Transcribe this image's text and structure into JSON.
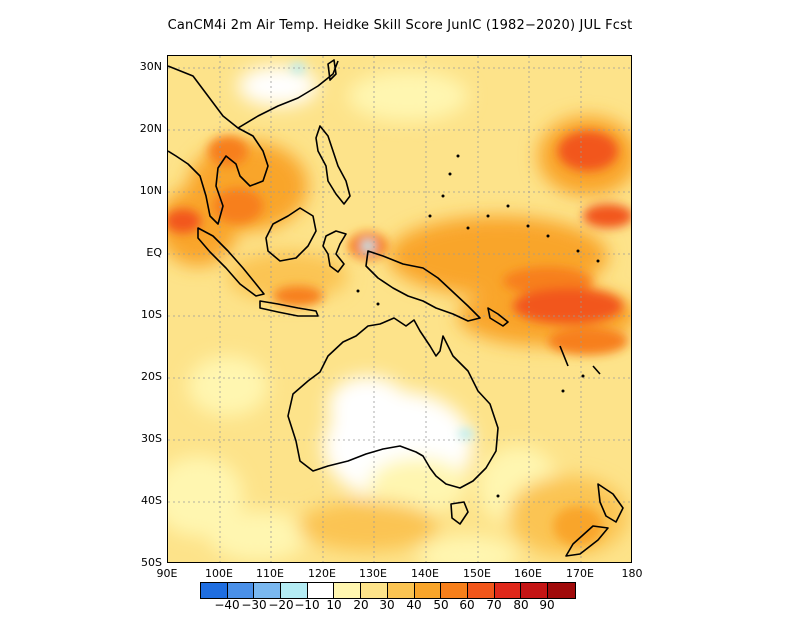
{
  "title": "CanCM4i  2m Air Temp. Heidke Skill Score JunIC (1982−2020) JUL Fcst",
  "map": {
    "lat_labels": [
      "30N",
      "20N",
      "10N",
      "EQ",
      "10S",
      "20S",
      "30S",
      "40S",
      "50S"
    ],
    "lon_labels": [
      "90E",
      "100E",
      "110E",
      "120E",
      "130E",
      "140E",
      "150E",
      "160E",
      "170E",
      "180"
    ],
    "grid": "dotted"
  },
  "colorbar": {
    "colors": [
      "#1f6ee0",
      "#4a90e8",
      "#7ab8f0",
      "#b4ecf4",
      "#ffffff",
      "#fff6b0",
      "#fde38a",
      "#fbc452",
      "#f9a52a",
      "#f77f1a",
      "#f2561a",
      "#e0281a",
      "#c41414",
      "#a00a0a"
    ],
    "labels": [
      "−40",
      "−30",
      "−20",
      "−10",
      "10",
      "20",
      "30",
      "40",
      "50",
      "60",
      "70",
      "80",
      "90"
    ]
  }
}
